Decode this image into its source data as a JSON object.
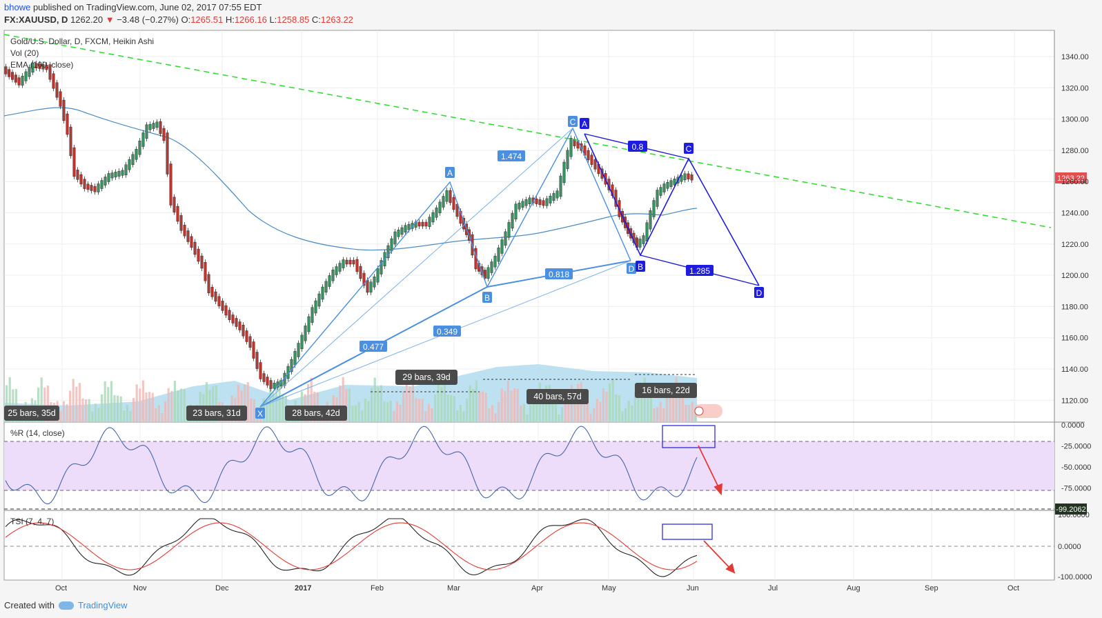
{
  "header": {
    "user": "bhowe",
    "published": "published on TradingView.com, June 02, 2017 07:55 EDT",
    "symbol": "FX:XAUUSD, D",
    "last": "1262.20",
    "change": "−3.48 (−0.27%)",
    "open_label": "O:",
    "open": "1265.51",
    "high_label": "H:",
    "high": "1266.16",
    "low_label": "L:",
    "low": "1258.85",
    "close_label": "C:",
    "close": "1263.22"
  },
  "legend": {
    "title": "Gold/U.S. Dollar, D, FXCM, Heikin Ashi",
    "vol": "Vol (20)",
    "ema": "EMA (100, close)",
    "wr": "%R (14, close)",
    "tsi": "TSI (7, 4, 7)"
  },
  "price_axis": {
    "ticks": [
      "1340.00",
      "1320.00",
      "1300.00",
      "1280.00",
      "1260.00",
      "1240.00",
      "1220.00",
      "1200.00",
      "1180.00",
      "1160.00",
      "1140.00",
      "1120.00"
    ],
    "current": "1263.22"
  },
  "wr_axis": {
    "ticks": [
      "0.0000",
      "-25.0000",
      "-50.0000",
      "-75.0000"
    ],
    "current": "-99.2062"
  },
  "tsi_axis": {
    "ticks": [
      "100.0000",
      "0.0000",
      "-100.0000"
    ]
  },
  "time_axis": [
    "Oct",
    "Nov",
    "Dec",
    "2017",
    "Feb",
    "Mar",
    "Apr",
    "May",
    "Jun",
    "Jul",
    "Aug",
    "Sep",
    "Oct"
  ],
  "pattern_labels": {
    "x": "X",
    "a1": "A",
    "b1": "B",
    "c1": "C",
    "d1": "D",
    "a2": "A",
    "b2": "B",
    "c2": "C",
    "d2": "D",
    "r1474": "1.474",
    "r0818": "0.818",
    "r0477": "0.477",
    "r0349": "0.349",
    "r08": "0.8",
    "r1285": "1.285"
  },
  "bar_labels": {
    "b25": "25 bars, 35d",
    "b23": "23 bars, 31d",
    "b28": "28 bars, 42d",
    "b29": "29 bars, 39d",
    "b40": "40 bars, 57d",
    "b16": "16 bars, 22d"
  },
  "footer": {
    "created": "Created with",
    "brand": "TradingView"
  },
  "colors": {
    "accent": "#1e53e5",
    "bull": "#2e7d5b",
    "bear": "#c62828",
    "trendline": "#33dd33",
    "tsi_signal": "#e53935",
    "wr_band": "#e8d8f8"
  }
}
